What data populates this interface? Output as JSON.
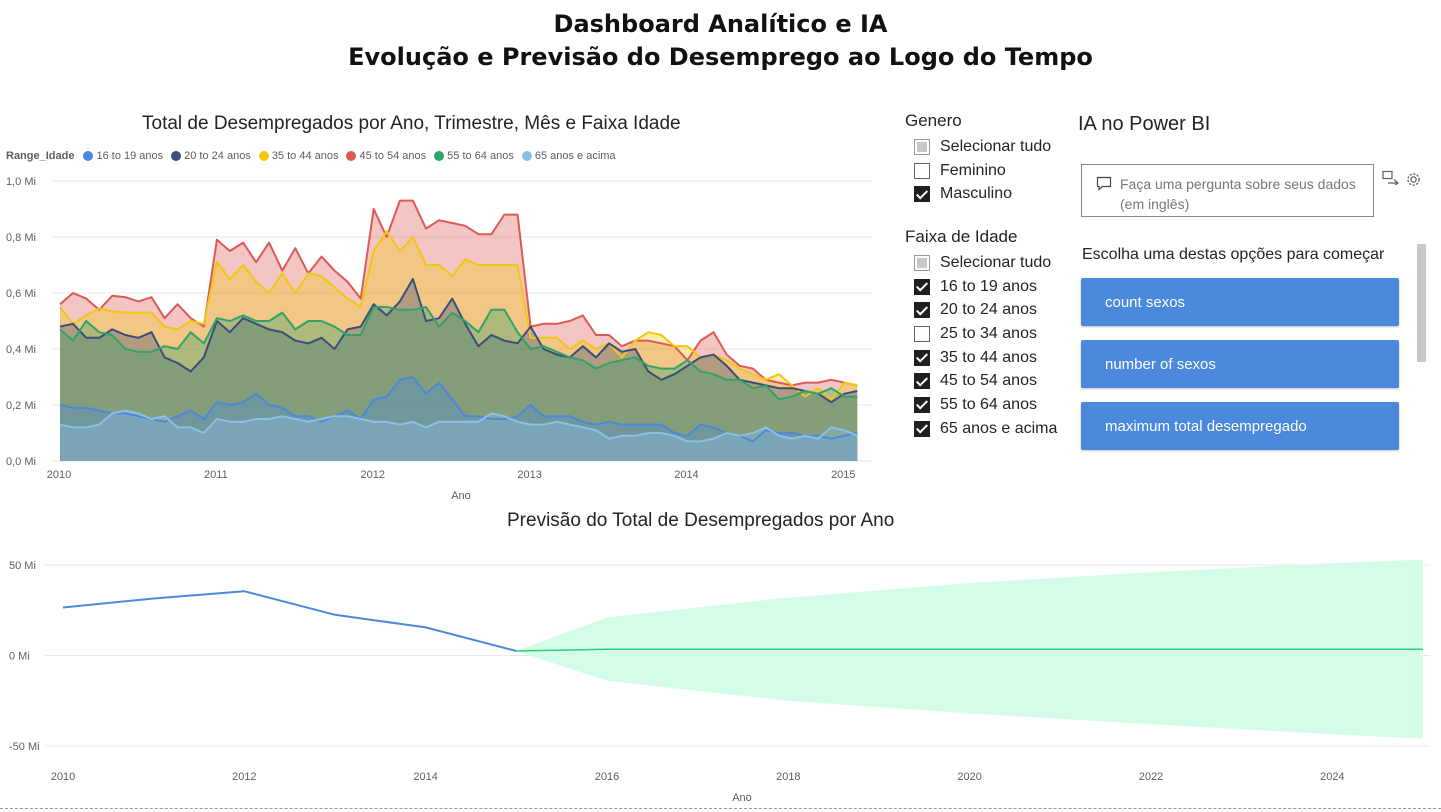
{
  "dashboard": {
    "title_line1": "Dashboard Analítico e IA",
    "title_line2": "Evolução e Previsão do Desemprego ao Logo do Tempo"
  },
  "area_chart": {
    "title": "Total de Desempregados por Ano, Trimestre, Mês e Faixa Idade",
    "legend_title": "Range_Idade",
    "x_axis_label": "Ano"
  },
  "forecast_chart": {
    "title": "Previsão do Total de Desempregados por Ano",
    "x_axis_label": "Ano"
  },
  "slicer_genero": {
    "title": "Genero",
    "items": [
      {
        "label": "Selecionar tudo",
        "state": "partial"
      },
      {
        "label": "Feminino",
        "state": "unchecked"
      },
      {
        "label": "Masculino",
        "state": "checked"
      }
    ]
  },
  "slicer_faixa": {
    "title": "Faixa de Idade",
    "items": [
      {
        "label": "Selecionar tudo",
        "state": "partial"
      },
      {
        "label": "16 to 19 anos",
        "state": "checked"
      },
      {
        "label": "20 to 24 anos",
        "state": "checked"
      },
      {
        "label": "25 to 34 anos",
        "state": "unchecked"
      },
      {
        "label": "35 to 44 anos",
        "state": "checked"
      },
      {
        "label": "45 to 54 anos",
        "state": "checked"
      },
      {
        "label": "55 to 64 anos",
        "state": "checked"
      },
      {
        "label": "65 anos e acima",
        "state": "checked"
      }
    ]
  },
  "qa": {
    "title": "IA no Power BI",
    "input_placeholder_line1": "Faça uma pergunta sobre seus dados",
    "input_placeholder_line2": "(em inglês)",
    "icons": [
      "chat-bubble-icon",
      "share-icon",
      "gear-icon"
    ],
    "prompt": "Escolha uma destas opções para começar",
    "suggestions": [
      "count sexos",
      "number of sexos",
      "maximum total desempregado"
    ],
    "button_color": "#4a89dc"
  },
  "chart_data": [
    {
      "type": "area",
      "title": "Total de Desempregados por Ano, Trimestre, Mês e Faixa Idade",
      "xlabel": "Ano",
      "ylabel": "",
      "x_ticks": [
        "2010",
        "2011",
        "2012",
        "2013",
        "2014",
        "2015"
      ],
      "y_ticks": [
        "0,0 Mi",
        "0,2 Mi",
        "0,4 Mi",
        "0,6 Mi",
        "0,8 Mi",
        "1,0 Mi"
      ],
      "xlim": [
        2010,
        2015.1
      ],
      "ylim": [
        0,
        1.0
      ],
      "y_unit": "Mi",
      "grid": true,
      "legend_position": "top-left",
      "layering": "overlapping",
      "x": [
        2010.0,
        2010.083,
        2010.167,
        2010.25,
        2010.333,
        2010.417,
        2010.5,
        2010.583,
        2010.667,
        2010.75,
        2010.833,
        2010.917,
        2011.0,
        2011.083,
        2011.167,
        2011.25,
        2011.333,
        2011.417,
        2011.5,
        2011.583,
        2011.667,
        2011.75,
        2011.833,
        2011.917,
        2012.0,
        2012.083,
        2012.167,
        2012.25,
        2012.333,
        2012.417,
        2012.5,
        2012.583,
        2012.667,
        2012.75,
        2012.833,
        2012.917,
        2013.0,
        2013.083,
        2013.167,
        2013.25,
        2013.333,
        2013.417,
        2013.5,
        2013.583,
        2013.667,
        2013.75,
        2013.833,
        2013.917,
        2014.0,
        2014.083,
        2014.167,
        2014.25,
        2014.333,
        2014.417,
        2014.5,
        2014.583,
        2014.667,
        2014.75,
        2014.833,
        2014.917,
        2015.0,
        2015.083
      ],
      "series": [
        {
          "name": "45 to 54 anos",
          "color": "#dd5a55",
          "values": [
            0.56,
            0.6,
            0.58,
            0.54,
            0.59,
            0.585,
            0.57,
            0.585,
            0.51,
            0.56,
            0.51,
            0.48,
            0.79,
            0.75,
            0.78,
            0.71,
            0.78,
            0.68,
            0.76,
            0.67,
            0.73,
            0.68,
            0.64,
            0.58,
            0.9,
            0.8,
            0.93,
            0.93,
            0.83,
            0.86,
            0.85,
            0.84,
            0.81,
            0.81,
            0.88,
            0.88,
            0.48,
            0.49,
            0.49,
            0.5,
            0.52,
            0.45,
            0.45,
            0.41,
            0.43,
            0.43,
            0.42,
            0.41,
            0.36,
            0.43,
            0.46,
            0.38,
            0.34,
            0.33,
            0.29,
            0.28,
            0.27,
            0.28,
            0.28,
            0.29,
            0.28,
            0.27
          ]
        },
        {
          "name": "35 to 44 anos",
          "color": "#f2c80f",
          "values": [
            0.55,
            0.49,
            0.52,
            0.545,
            0.535,
            0.53,
            0.53,
            0.53,
            0.48,
            0.47,
            0.5,
            0.49,
            0.71,
            0.65,
            0.7,
            0.64,
            0.6,
            0.67,
            0.6,
            0.67,
            0.66,
            0.62,
            0.58,
            0.55,
            0.75,
            0.82,
            0.75,
            0.8,
            0.7,
            0.7,
            0.66,
            0.72,
            0.7,
            0.7,
            0.7,
            0.7,
            0.44,
            0.44,
            0.44,
            0.4,
            0.43,
            0.4,
            0.42,
            0.37,
            0.43,
            0.46,
            0.45,
            0.41,
            0.41,
            0.37,
            0.38,
            0.36,
            0.33,
            0.31,
            0.29,
            0.31,
            0.27,
            0.23,
            0.26,
            0.22,
            0.28,
            0.27
          ]
        },
        {
          "name": "20 to 24 anos",
          "color": "#3b4e7a",
          "values": [
            0.48,
            0.49,
            0.44,
            0.44,
            0.47,
            0.45,
            0.44,
            0.46,
            0.37,
            0.35,
            0.32,
            0.37,
            0.5,
            0.46,
            0.51,
            0.49,
            0.47,
            0.46,
            0.43,
            0.42,
            0.44,
            0.4,
            0.47,
            0.48,
            0.56,
            0.52,
            0.57,
            0.65,
            0.5,
            0.51,
            0.58,
            0.49,
            0.41,
            0.45,
            0.43,
            0.42,
            0.48,
            0.4,
            0.38,
            0.37,
            0.41,
            0.37,
            0.42,
            0.39,
            0.4,
            0.32,
            0.29,
            0.31,
            0.34,
            0.37,
            0.38,
            0.34,
            0.29,
            0.28,
            0.27,
            0.26,
            0.26,
            0.25,
            0.24,
            0.21,
            0.24,
            0.25
          ]
        },
        {
          "name": "55 to 64 anos",
          "color": "#2ea36a",
          "values": [
            0.47,
            0.43,
            0.5,
            0.46,
            0.45,
            0.4,
            0.39,
            0.39,
            0.41,
            0.4,
            0.46,
            0.42,
            0.51,
            0.5,
            0.52,
            0.5,
            0.5,
            0.53,
            0.47,
            0.5,
            0.5,
            0.48,
            0.45,
            0.45,
            0.55,
            0.55,
            0.54,
            0.54,
            0.55,
            0.48,
            0.53,
            0.5,
            0.46,
            0.54,
            0.54,
            0.46,
            0.4,
            0.41,
            0.39,
            0.37,
            0.36,
            0.33,
            0.35,
            0.36,
            0.37,
            0.34,
            0.33,
            0.33,
            0.36,
            0.32,
            0.31,
            0.29,
            0.29,
            0.26,
            0.27,
            0.22,
            0.23,
            0.25,
            0.24,
            0.26,
            0.23,
            0.23
          ]
        },
        {
          "name": "16 to 19 anos",
          "color": "#4a89dc",
          "values": [
            0.2,
            0.19,
            0.19,
            0.18,
            0.17,
            0.17,
            0.16,
            0.15,
            0.14,
            0.16,
            0.18,
            0.15,
            0.21,
            0.2,
            0.21,
            0.24,
            0.2,
            0.19,
            0.16,
            0.16,
            0.14,
            0.16,
            0.18,
            0.15,
            0.22,
            0.23,
            0.29,
            0.3,
            0.24,
            0.28,
            0.22,
            0.16,
            0.16,
            0.15,
            0.15,
            0.16,
            0.2,
            0.16,
            0.16,
            0.16,
            0.14,
            0.13,
            0.14,
            0.13,
            0.13,
            0.13,
            0.13,
            0.1,
            0.09,
            0.13,
            0.12,
            0.1,
            0.09,
            0.07,
            0.11,
            0.1,
            0.1,
            0.09,
            0.09,
            0.08,
            0.09,
            0.1
          ]
        },
        {
          "name": "65 anos e acima",
          "color": "#8cbfe8",
          "values": [
            0.13,
            0.12,
            0.12,
            0.13,
            0.17,
            0.18,
            0.17,
            0.15,
            0.16,
            0.12,
            0.12,
            0.1,
            0.15,
            0.14,
            0.14,
            0.15,
            0.15,
            0.16,
            0.15,
            0.14,
            0.15,
            0.16,
            0.16,
            0.15,
            0.14,
            0.14,
            0.13,
            0.14,
            0.12,
            0.14,
            0.14,
            0.14,
            0.14,
            0.17,
            0.16,
            0.14,
            0.13,
            0.13,
            0.14,
            0.13,
            0.12,
            0.11,
            0.08,
            0.09,
            0.09,
            0.1,
            0.1,
            0.09,
            0.07,
            0.07,
            0.08,
            0.1,
            0.09,
            0.1,
            0.12,
            0.09,
            0.08,
            0.09,
            0.08,
            0.12,
            0.11,
            0.09
          ]
        }
      ]
    },
    {
      "type": "line",
      "title": "Previsão do Total de Desempregados por Ano",
      "xlabel": "Ano",
      "ylabel": "",
      "x_ticks": [
        "2010",
        "2012",
        "2014",
        "2016",
        "2018",
        "2020",
        "2022",
        "2024"
      ],
      "y_ticks": [
        "-50 Mi",
        "0 Mi",
        "50 Mi"
      ],
      "xlim": [
        2010,
        2025
      ],
      "ylim": [
        -50,
        50
      ],
      "y_unit": "Mi",
      "grid": true,
      "actual": {
        "color": "#4a89dc",
        "x": [
          2010,
          2011,
          2012,
          2013,
          2014,
          2015
        ],
        "values": [
          26.5,
          31.5,
          35.5,
          22.5,
          15.5,
          2.5
        ]
      },
      "forecast": {
        "color": "#2ecf7a",
        "band_color": "#d3fde6",
        "x": [
          2015,
          2016,
          2018,
          2020,
          2022,
          2024,
          2025
        ],
        "values": [
          2.5,
          3.5,
          3.5,
          3.5,
          3.5,
          3.5,
          3.5
        ],
        "upper": [
          2.5,
          21.0,
          32.0,
          40.0,
          46.0,
          51.0,
          53.0
        ],
        "lower": [
          2.5,
          -14.0,
          -25.0,
          -32.0,
          -38.0,
          -43.5,
          -46.0
        ]
      }
    }
  ]
}
